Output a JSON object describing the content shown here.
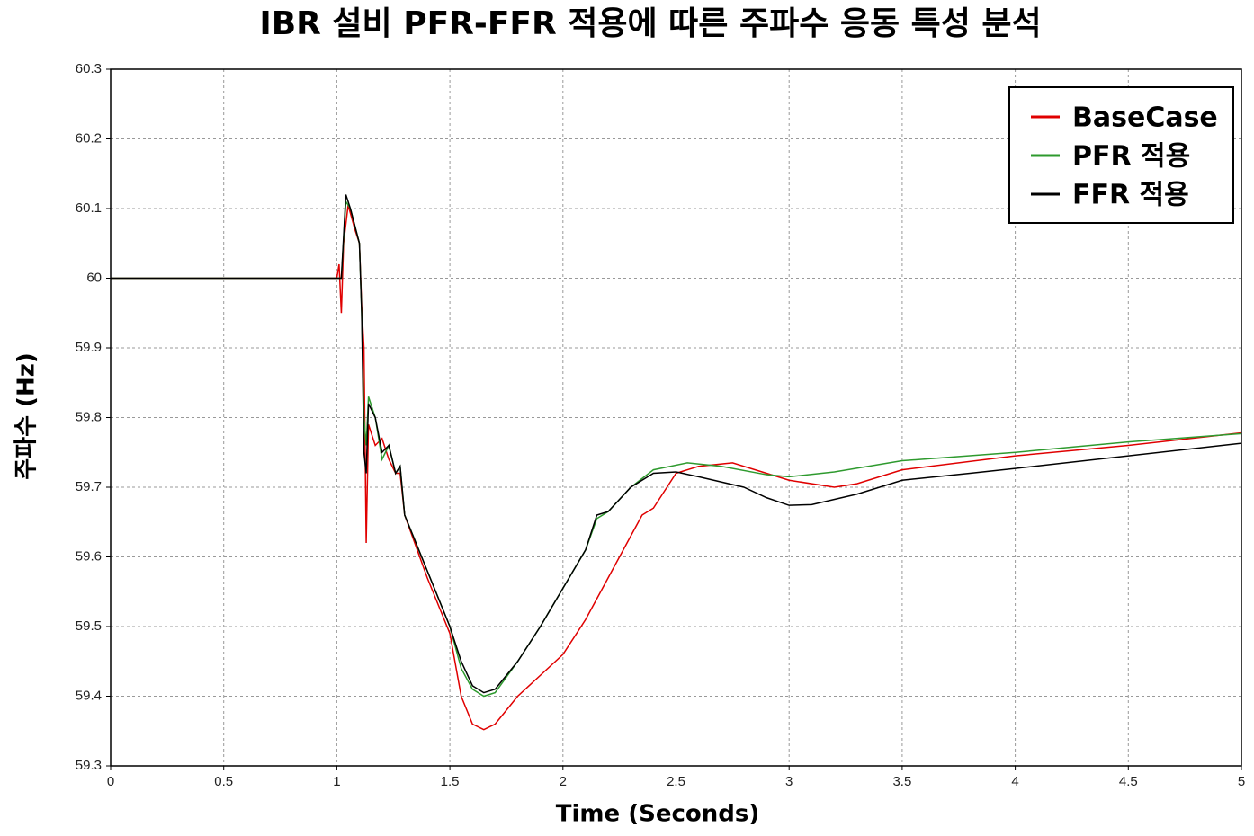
{
  "chart_data": {
    "type": "line",
    "title": "IBR 설비 PFR-FFR 적용에 따른 주파수 응동 특성 분석",
    "x_label": "Time (Seconds)",
    "y_label": "주파수 (Hz)",
    "xlim": [
      0,
      5
    ],
    "xticks": [
      0,
      0.5,
      1,
      1.5,
      2,
      2.5,
      3,
      3.5,
      4,
      4.5,
      5
    ],
    "ylim": [
      59.3,
      60.3
    ],
    "yticks": [
      59.3,
      59.4,
      59.5,
      59.6,
      59.7,
      59.8,
      59.9,
      60,
      60.1,
      60.2,
      60.3
    ],
    "grid": true,
    "legend": "upper right",
    "series": [
      {
        "name": "BaseCase",
        "color": "#e00000",
        "x": [
          0,
          1.0,
          1.01,
          1.02,
          1.03,
          1.05,
          1.08,
          1.1,
          1.11,
          1.12,
          1.13,
          1.14,
          1.17,
          1.2,
          1.23,
          1.26,
          1.28,
          1.3,
          1.4,
          1.5,
          1.55,
          1.6,
          1.65,
          1.7,
          1.8,
          1.9,
          2.0,
          2.1,
          2.2,
          2.3,
          2.35,
          2.4,
          2.5,
          2.6,
          2.75,
          2.9,
          3.0,
          3.2,
          3.3,
          3.5,
          4.0,
          4.5,
          5
        ],
        "values": [
          60,
          60,
          60.02,
          59.95,
          60.05,
          60.105,
          60.07,
          60.05,
          59.96,
          59.9,
          59.62,
          59.79,
          59.76,
          59.77,
          59.74,
          59.72,
          59.72,
          59.66,
          59.57,
          59.49,
          59.4,
          59.36,
          59.352,
          59.36,
          59.4,
          59.43,
          59.46,
          59.51,
          59.57,
          59.63,
          59.66,
          59.67,
          59.72,
          59.73,
          59.735,
          59.72,
          59.71,
          59.7,
          59.705,
          59.725,
          59.745,
          59.76,
          59.778
        ]
      },
      {
        "name": "PFR 적용",
        "color": "#2e9a2e",
        "x": [
          0,
          1.0,
          1.02,
          1.04,
          1.06,
          1.1,
          1.11,
          1.12,
          1.13,
          1.14,
          1.17,
          1.2,
          1.23,
          1.26,
          1.28,
          1.3,
          1.4,
          1.5,
          1.55,
          1.6,
          1.65,
          1.7,
          1.8,
          1.9,
          2.0,
          2.1,
          2.15,
          2.2,
          2.3,
          2.4,
          2.55,
          2.7,
          2.9,
          3.0,
          3.2,
          3.5,
          4.0,
          4.5,
          5
        ],
        "values": [
          60,
          60,
          60.0,
          60.11,
          60.1,
          60.05,
          59.95,
          59.8,
          59.76,
          59.83,
          59.8,
          59.74,
          59.76,
          59.72,
          59.73,
          59.66,
          59.58,
          59.5,
          59.44,
          59.41,
          59.4,
          59.405,
          59.45,
          59.5,
          59.555,
          59.61,
          59.655,
          59.665,
          59.7,
          59.725,
          59.735,
          59.73,
          59.718,
          59.715,
          59.722,
          59.738,
          59.75,
          59.765,
          59.777
        ]
      },
      {
        "name": "FFR 적용",
        "color": "#000000",
        "x": [
          0,
          1.0,
          1.02,
          1.04,
          1.06,
          1.1,
          1.11,
          1.12,
          1.13,
          1.14,
          1.17,
          1.2,
          1.23,
          1.26,
          1.28,
          1.3,
          1.4,
          1.5,
          1.55,
          1.6,
          1.65,
          1.7,
          1.8,
          1.9,
          2.0,
          2.1,
          2.15,
          2.2,
          2.3,
          2.4,
          2.5,
          2.6,
          2.8,
          2.9,
          3.0,
          3.1,
          3.3,
          3.5,
          3.8,
          4.0,
          4.5,
          5
        ],
        "values": [
          60,
          60,
          60.0,
          60.12,
          60.1,
          60.05,
          59.95,
          59.75,
          59.72,
          59.82,
          59.8,
          59.75,
          59.76,
          59.72,
          59.73,
          59.66,
          59.58,
          59.5,
          59.45,
          59.415,
          59.405,
          59.41,
          59.45,
          59.5,
          59.555,
          59.61,
          59.66,
          59.665,
          59.7,
          59.72,
          59.722,
          59.715,
          59.7,
          59.685,
          59.674,
          59.675,
          59.69,
          59.71,
          59.72,
          59.727,
          59.745,
          59.763
        ]
      }
    ]
  }
}
